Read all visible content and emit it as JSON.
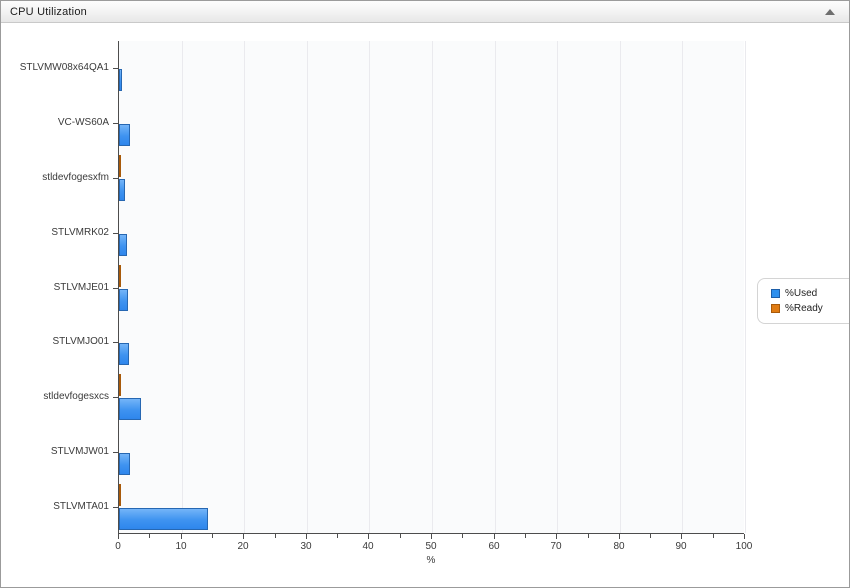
{
  "window": {
    "title": "CPU Utilization",
    "collapse_icon": "collapse-up-triangle"
  },
  "legend": {
    "position": "right",
    "items": [
      {
        "label": "%Used",
        "color": "#2e90ee"
      },
      {
        "label": "%Ready",
        "color": "#e07b12"
      }
    ]
  },
  "chart_data": {
    "type": "bar",
    "orientation": "horizontal",
    "title": "CPU Utilization",
    "xlabel": "%",
    "xlim": [
      0,
      100
    ],
    "x_major_step": 10,
    "x_minor_step": 5,
    "grid": "vertical-major",
    "legend_position": "right",
    "categories": [
      "STLVMW08x64QA1",
      "VC-WS60A",
      "stldevfogesxfm",
      "STLVMRK02",
      "STLVMJE01",
      "STLVMJO01",
      "stldevfogesxcs",
      "STLVMJW01",
      "STLVMTA01"
    ],
    "series": [
      {
        "name": "%Used",
        "color": "#2e86ec",
        "values": [
          0.5,
          1.75,
          1.0,
          1.3,
          1.45,
          1.6,
          3.5,
          1.75,
          14.2
        ]
      },
      {
        "name": "%Ready",
        "color": "#e07b12",
        "values": [
          0,
          0,
          0.3,
          0,
          0.25,
          0,
          0.3,
          0,
          0.3
        ]
      }
    ],
    "x_tick_labels": [
      "0",
      "10",
      "20",
      "30",
      "40",
      "50",
      "60",
      "70",
      "80",
      "90",
      "100"
    ]
  }
}
